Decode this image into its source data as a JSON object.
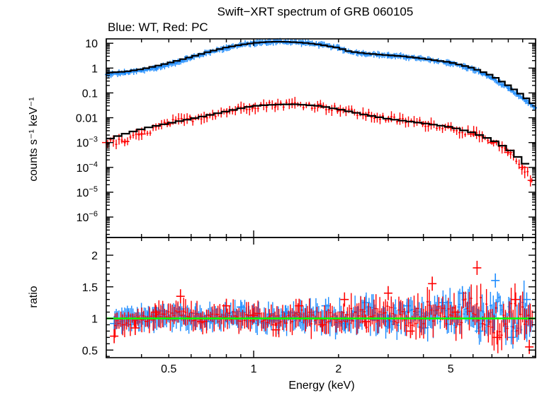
{
  "title": "Swift−XRT spectrum of GRB 060105",
  "subtitle": "Blue: WT, Red: PC",
  "colors": {
    "wt": "#1e8cff",
    "pc": "#ff0000",
    "model": "#000000",
    "unity": "#00ff00",
    "axes": "#000000"
  },
  "chart_data": [
    {
      "type": "scatter",
      "title": "Swift−XRT spectrum of GRB 060105",
      "subtitle": "Blue: WT, Red: PC",
      "ylabel": "counts s⁻¹ keV⁻¹",
      "xscale": "log",
      "yscale": "log",
      "xlim": [
        0.3,
        10
      ],
      "ylim": [
        1.5e-07,
        15
      ],
      "xticks": [
        0.5,
        1,
        2,
        5
      ],
      "yticks": [
        {
          "value": 10,
          "label": "10"
        },
        {
          "value": 1,
          "label": "1"
        },
        {
          "value": 0.1,
          "label": "0.1"
        },
        {
          "value": 0.01,
          "label": "0.01"
        },
        {
          "value": 0.001,
          "base": "10",
          "exp": "−3"
        },
        {
          "value": 0.0001,
          "base": "10",
          "exp": "−4"
        },
        {
          "value": 1e-05,
          "base": "10",
          "exp": "−5"
        },
        {
          "value": 1e-06,
          "base": "10",
          "exp": "−6"
        }
      ],
      "series": [
        {
          "color": "wt",
          "x": [
            0.3,
            0.35,
            0.4,
            0.45,
            0.5,
            0.6,
            0.7,
            0.8,
            0.9,
            1.0,
            1.1,
            1.2,
            1.3,
            1.5,
            1.7,
            2.0,
            2.2,
            2.5,
            3.0,
            3.5,
            4.0,
            5.0,
            6.0,
            7.0,
            8.0,
            9.0,
            10.0
          ],
          "y": [
            0.55,
            0.65,
            0.8,
            1.0,
            1.4,
            2.6,
            4.5,
            6.5,
            8.5,
            10,
            11,
            11.5,
            11.5,
            10.5,
            9,
            6.5,
            4.5,
            3.8,
            3.2,
            2.8,
            2.3,
            1.6,
            0.9,
            0.4,
            0.15,
            0.06,
            0.025
          ]
        },
        {
          "color": "pc",
          "x": [
            0.3,
            0.35,
            0.4,
            0.5,
            0.6,
            0.7,
            0.8,
            0.9,
            1.0,
            1.2,
            1.4,
            1.7,
            2.0,
            2.5,
            3.0,
            4.0,
            5.0,
            6.0,
            7.0,
            8.0,
            9.0,
            9.7
          ],
          "y": [
            0.001,
            0.0011,
            0.0022,
            0.006,
            0.009,
            0.013,
            0.018,
            0.024,
            0.03,
            0.034,
            0.035,
            0.03,
            0.022,
            0.013,
            0.009,
            0.006,
            0.004,
            0.0022,
            0.001,
            0.0004,
            0.0001,
            3e-05
          ]
        }
      ],
      "model": [
        {
          "x": [
            0.3,
            0.35,
            0.4,
            0.45,
            0.5,
            0.6,
            0.7,
            0.8,
            0.9,
            1.0,
            1.1,
            1.2,
            1.3,
            1.5,
            1.7,
            2.0,
            2.2,
            2.5,
            3.0,
            3.5,
            4.0,
            5.0,
            6.0,
            7.0,
            8.0,
            9.0,
            10.0
          ],
          "y": [
            0.65,
            0.72,
            0.9,
            1.2,
            1.6,
            2.8,
            4.7,
            6.8,
            8.7,
            10.2,
            11.2,
            11.6,
            11.5,
            10.5,
            9,
            6.5,
            4.6,
            3.9,
            3.3,
            2.9,
            2.4,
            1.7,
            1.0,
            0.5,
            0.2,
            0.08,
            0.03
          ]
        },
        {
          "x": [
            0.3,
            0.36,
            0.42,
            0.5,
            0.6,
            0.7,
            0.8,
            0.9,
            1.0,
            1.2,
            1.4,
            1.7,
            2.0,
            2.5,
            3.0,
            4.0,
            5.0,
            6.0,
            7.0,
            8.0,
            9.0,
            9.5
          ],
          "y": [
            0.0013,
            0.0025,
            0.004,
            0.006,
            0.009,
            0.013,
            0.018,
            0.024,
            0.03,
            0.034,
            0.035,
            0.03,
            0.022,
            0.013,
            0.009,
            0.006,
            0.0042,
            0.0025,
            0.0013,
            0.00055,
            0.00018,
            0.0001
          ]
        }
      ]
    },
    {
      "type": "scatter",
      "xlabel": "Energy (keV)",
      "ylabel": "ratio",
      "xscale": "log",
      "xlim": [
        0.3,
        10
      ],
      "ylim": [
        0.38,
        2.28
      ],
      "xticks": [
        0.5,
        1,
        2,
        5
      ],
      "xtick_labels": [
        "0.5",
        "1",
        "2",
        "5"
      ],
      "yticks": [
        0.5,
        1,
        1.5,
        2
      ],
      "ytick_labels": [
        "0.5",
        "1",
        "1.5",
        "2"
      ],
      "reference_line": 1,
      "series": [
        {
          "color": "wt",
          "x": [
            0.32,
            0.36,
            0.42,
            0.48,
            0.55,
            0.62,
            0.7,
            0.8,
            0.9,
            1.0,
            1.15,
            1.3,
            1.5,
            1.8,
            2.1,
            2.5,
            3.0,
            3.5,
            4.0,
            4.7,
            5.5,
            6.3,
            7.2,
            8.2,
            9.3
          ],
          "y": [
            0.92,
            1.05,
            1.0,
            1.12,
            1.15,
            1.08,
            0.95,
            1.05,
            1.18,
            1.02,
            0.97,
            1.1,
            1.0,
            1.2,
            0.92,
            1.25,
            0.95,
            1.2,
            0.85,
            1.25,
            1.4,
            0.8,
            1.6,
            0.7,
            1.3
          ]
        },
        {
          "color": "pc",
          "x": [
            0.32,
            0.38,
            0.45,
            0.55,
            0.65,
            0.8,
            1.0,
            1.2,
            1.45,
            1.75,
            2.1,
            2.5,
            3.0,
            3.6,
            4.3,
            5.2,
            6.2,
            7.3,
            8.5,
            9.5
          ],
          "y": [
            0.72,
            0.85,
            1.1,
            1.35,
            0.95,
            1.2,
            1.05,
            0.82,
            1.2,
            0.9,
            1.3,
            0.95,
            1.4,
            0.8,
            1.55,
            1.1,
            1.8,
            0.7,
            1.3,
            0.55
          ]
        }
      ]
    }
  ]
}
